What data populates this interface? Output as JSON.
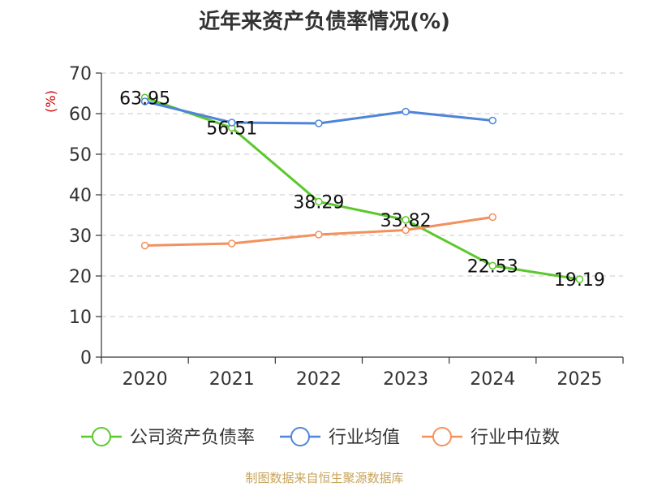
{
  "chart_data": {
    "type": "line",
    "title": "近年来资产负债率情况(%)",
    "ylabel": "(%)",
    "xlabel": "",
    "ylim": [
      0,
      70
    ],
    "yticks": [
      0,
      10,
      20,
      30,
      40,
      50,
      60,
      70
    ],
    "categories": [
      "2020",
      "2021",
      "2022",
      "2023",
      "2024",
      "2025"
    ],
    "grid": true,
    "legend_position": "bottom",
    "series": [
      {
        "name": "公司资产负债率",
        "color": "#5cc82c",
        "values": [
          63.95,
          56.51,
          38.29,
          33.82,
          22.53,
          19.19
        ],
        "show_labels": true
      },
      {
        "name": "行业均值",
        "color": "#4f85d8",
        "values": [
          63.0,
          57.8,
          57.6,
          60.5,
          58.3,
          null
        ],
        "show_labels": false
      },
      {
        "name": "行业中位数",
        "color": "#f2915e",
        "values": [
          27.5,
          28.0,
          30.2,
          31.3,
          34.5,
          null
        ],
        "show_labels": false
      }
    ]
  },
  "source_text": "制图数据来自恒生聚源数据库"
}
